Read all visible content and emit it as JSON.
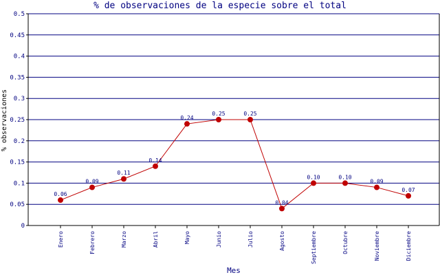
{
  "chart_data": {
    "type": "line",
    "title": "% de observaciones de la especie sobre el total",
    "xlabel": "Mes",
    "ylabel": "% observaciones",
    "ylim": [
      0,
      0.5
    ],
    "yticks": [
      "0",
      "0.05",
      "0.1",
      "0.15",
      "0.2",
      "0.25",
      "0.3",
      "0.35",
      "0.4",
      "0.45",
      "0.5"
    ],
    "categories": [
      "Enero",
      "Febrero",
      "Marzo",
      "Abril",
      "Mayo",
      "Junio",
      "Julio",
      "Agosto",
      "Septiembre",
      "Octubre",
      "Noviembre",
      "Diciembre"
    ],
    "values": [
      0.06,
      0.09,
      0.11,
      0.14,
      0.24,
      0.25,
      0.25,
      0.04,
      0.1,
      0.1,
      0.09,
      0.07
    ],
    "value_labels": [
      "0.06",
      "0.09",
      "0.11",
      "0.14",
      "0.24",
      "0.25",
      "0.25",
      "0.04",
      "0.10",
      "0.10",
      "0.09",
      "0.07"
    ],
    "grid": true,
    "colors": {
      "grid": "#000080",
      "axis": "#000000",
      "line": "#c00000",
      "marker": "#c00000",
      "title": "#000080",
      "text": "#000080"
    }
  }
}
